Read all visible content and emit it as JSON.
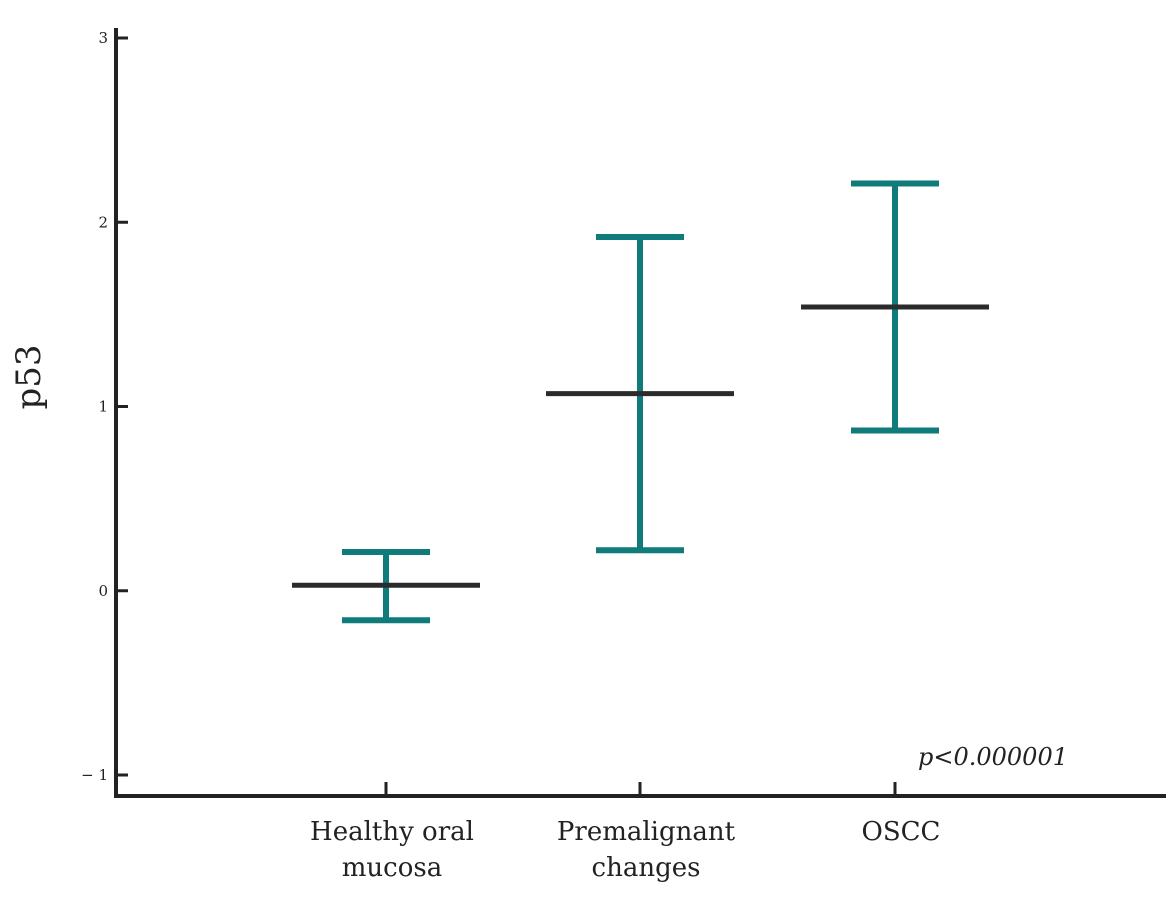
{
  "chart_data": {
    "type": "error_bar",
    "ylabel": "p53",
    "ylim": [
      -1,
      3
    ],
    "yticks": [
      -1,
      0,
      1,
      2,
      3
    ],
    "ytick_labels": [
      "− 1",
      "0",
      "1",
      "2",
      "3"
    ],
    "grid": false,
    "categories": [
      {
        "lines": [
          "Healthy oral",
          "mucosa"
        ]
      },
      {
        "lines": [
          "Premalignant",
          "changes"
        ]
      },
      {
        "lines": [
          "OSCC"
        ]
      }
    ],
    "means": [
      0.03,
      1.07,
      1.54
    ],
    "lower": [
      -0.16,
      0.22,
      0.87
    ],
    "upper": [
      0.21,
      1.92,
      2.21
    ],
    "annotation": "p<0.000001",
    "colors": {
      "axis": "#222222",
      "mean": "#2b2b2b",
      "error_bar": "#0f7b7b"
    }
  }
}
